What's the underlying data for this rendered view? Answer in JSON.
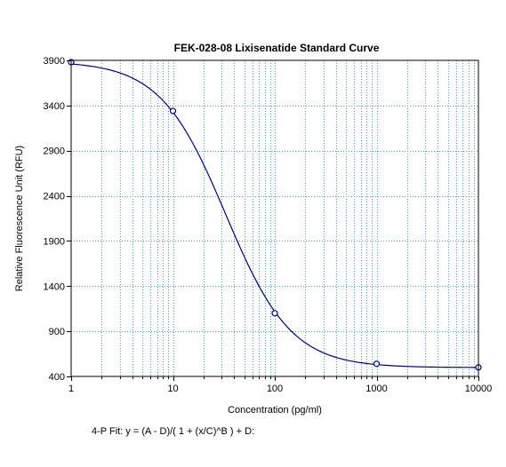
{
  "chart_data": {
    "type": "scatter",
    "title": "FEK-028-08 Lixisenatide Standard Curve",
    "xlabel": "Concentration (pg/ml)",
    "ylabel": "Relative Fluorescence Unit (RFU)",
    "x_scale": "log",
    "xlim": [
      1,
      10000
    ],
    "ylim": [
      400,
      3900
    ],
    "x_ticks": [
      1,
      10,
      100,
      1000,
      10000
    ],
    "x_tick_labels": [
      "1",
      "10",
      "100",
      "1000",
      "10000"
    ],
    "y_ticks": [
      400,
      900,
      1400,
      1900,
      2400,
      2900,
      3400,
      3900
    ],
    "y_tick_labels": [
      "400",
      "900",
      "1400",
      "1900",
      "2400",
      "2900",
      "3400",
      "3900"
    ],
    "grid": true,
    "series": [
      {
        "x": [
          1,
          10,
          100,
          1000,
          10000
        ],
        "y": [
          3880,
          3340,
          1100,
          540,
          500
        ]
      }
    ],
    "fit": {
      "type": "4-parameter logistic",
      "equation": "4-P Fit: y = (A - D)/( 1 + (x/C)^B ) + D:"
    },
    "colors": {
      "curve": "#000080",
      "points": "#000080",
      "grid": "#4aa3c8"
    }
  }
}
